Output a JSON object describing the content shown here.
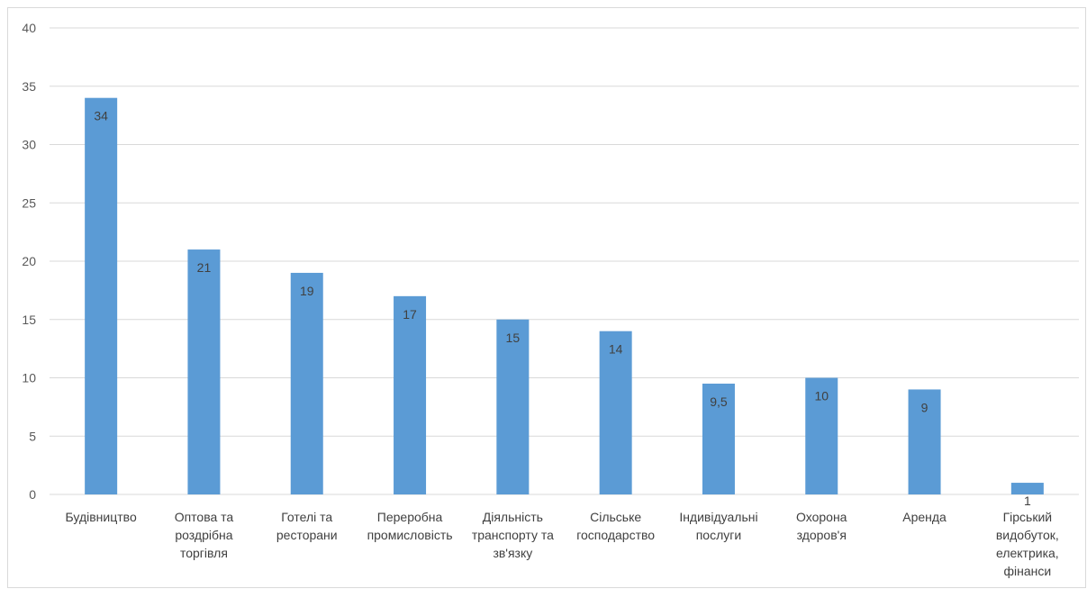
{
  "chart_data": {
    "type": "bar",
    "categories": [
      "Будівництво",
      "Оптова та роздрібна торгівля",
      "Готелі та ресторани",
      "Переробна промисловість",
      "Діяльність транспорту та зв'язку",
      "Сільське господарство",
      "Індивідуальні послуги",
      "Охорона здоров'я",
      "Аренда",
      "Гірський видобуток, електрика, фінанси"
    ],
    "category_lines": [
      [
        "Будівництво"
      ],
      [
        "Оптова та",
        "роздрібна",
        "торгівля"
      ],
      [
        "Готелі та",
        "ресторани"
      ],
      [
        "Переробна",
        "промисловість"
      ],
      [
        "Діяльність",
        "транспорту та",
        "зв'язку"
      ],
      [
        "Сільське",
        "господарство"
      ],
      [
        "Індивідуальні",
        "послуги"
      ],
      [
        "Охорона",
        "здоров'я"
      ],
      [
        "Аренда"
      ],
      [
        "Гірський",
        "видобуток,",
        "електрика,",
        "фінанси"
      ]
    ],
    "values": [
      34,
      21,
      19,
      17,
      15,
      14,
      9.5,
      10,
      9,
      1
    ],
    "data_labels": [
      "34",
      "21",
      "19",
      "17",
      "15",
      "14",
      "9,5",
      "10",
      "9",
      "1"
    ],
    "ylim": [
      0,
      40
    ],
    "yticks": [
      0,
      5,
      10,
      15,
      20,
      25,
      30,
      35,
      40
    ],
    "grid": true,
    "legend": "none",
    "title": "",
    "xlabel": "",
    "ylabel": "",
    "colors": {
      "bar": "#5b9bd5",
      "grid": "#d9d9d9",
      "tick_text": "#595959",
      "label_text": "#404040"
    }
  }
}
